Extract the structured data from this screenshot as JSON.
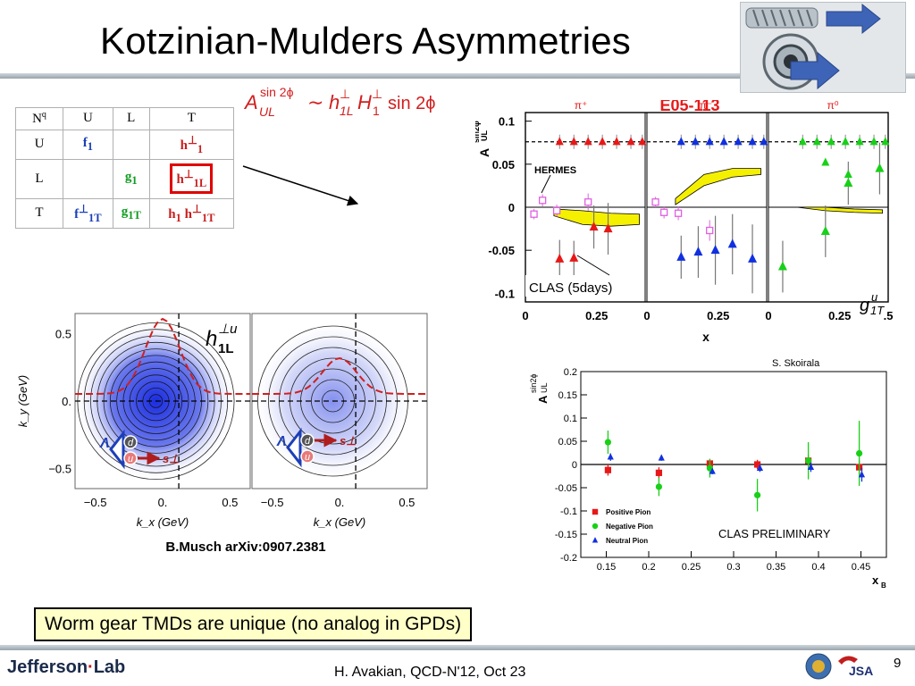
{
  "slide": {
    "title": "Kotzinian-Mulders Asymmetries",
    "page_number": "9",
    "footer": "H. Avakian, QCD-N'12,  Oct 23",
    "logo_text_left": "Jefferson",
    "logo_text_right": "Lab",
    "logo_jsa": "JSA",
    "top_logo_icon": "worm-gear-icon",
    "highlight_box": "Worm gear TMDs are unique (no analog in GPDs)",
    "citation": "B.Musch arXiv:0907.2381",
    "colors": {
      "red": "#e81818",
      "blue": "#1030e0",
      "green": "#18d018",
      "magenta": "#e060e0",
      "band": "#f5f000",
      "highlight_bg": "#ffffc8"
    }
  },
  "formula": {
    "A": "A",
    "sup": "sin 2ϕ",
    "sub": "UL",
    "sim": "∼",
    "h": "h",
    "hsup": "⊥",
    "hsub": "1L",
    "H": "H",
    "Hsup": "⊥",
    "Hsub": "1",
    "sin": "sin 2ϕ"
  },
  "tmd_table": {
    "corner_n": "N",
    "corner_q": "q",
    "cols": [
      "U",
      "L",
      "T"
    ],
    "rows": [
      {
        "label": "U",
        "cells": [
          {
            "base": "f",
            "sub": "1",
            "sup": "",
            "color": "blue"
          },
          {
            "base": "",
            "sub": "",
            "sup": "",
            "color": ""
          },
          {
            "base": "h",
            "sub": "1",
            "sup": "⊥",
            "color": "red"
          }
        ]
      },
      {
        "label": "L",
        "cells": [
          {
            "base": "",
            "sub": "",
            "sup": "",
            "color": ""
          },
          {
            "base": "g",
            "sub": "1",
            "sup": "",
            "color": "green"
          },
          {
            "base": "h",
            "sub": "1L",
            "sup": "⊥",
            "color": "red",
            "highlight": true
          }
        ]
      },
      {
        "label": "T",
        "cells": [
          {
            "base": "f",
            "sub": "1T",
            "sup": "⊥",
            "color": "blue"
          },
          {
            "base": "g",
            "sub": "1T",
            "sup": "",
            "color": "green"
          },
          {
            "base": "h",
            "sub": "1",
            "sup": "",
            "color": "red",
            "extra": {
              "base": "h",
              "sub": "1T",
              "sup": "⊥"
            }
          }
        ]
      }
    ]
  },
  "chart_data": [
    {
      "type": "scatter",
      "title": "E05-113",
      "ylabel_main": "A",
      "ylabel_sup": "sin2ϕ",
      "ylabel_sub": "UL",
      "xlabel": "x",
      "ylim": [
        -0.11,
        0.11
      ],
      "xlim": [
        0,
        0.42
      ],
      "yticks": [
        "0.1",
        "0.05",
        "0",
        "-0.05",
        "-0.1"
      ],
      "ytick_values": [
        0.1,
        0.05,
        0,
        -0.05,
        -0.1
      ],
      "xticks": [
        "0",
        "0.25",
        "0",
        "0.25",
        "0",
        "0.25",
        ".5"
      ],
      "annotation_hermes": "HERMES",
      "annotation_clas": "CLAS (5days)",
      "annotation_g": "g",
      "annotation_g_sup": "u",
      "annotation_g_sub": "1T",
      "panels": [
        {
          "label": "π⁺",
          "color": "#e81818",
          "projected": {
            "x": [
              0.12,
              0.17,
              0.22,
              0.27,
              0.32,
              0.37,
              0.41
            ],
            "y": [
              0.076,
              0.076,
              0.076,
              0.076,
              0.076,
              0.076,
              0.076
            ]
          },
          "clas": {
            "x": [
              0.12,
              0.17,
              0.24,
              0.29
            ],
            "y": [
              -0.06,
              -0.059,
              -0.023,
              -0.025
            ],
            "err": [
              0.022,
              0.02,
              0.025,
              0.03
            ]
          },
          "hermes": {
            "x": [
              0.03,
              0.06,
              0.11,
              0.22
            ],
            "y": [
              -0.008,
              0.008,
              -0.004,
              0.006
            ],
            "err": [
              0.006,
              0.007,
              0.007,
              0.01
            ]
          },
          "band": {
            "x": [
              0.1,
              0.2,
              0.3,
              0.4
            ],
            "lower": [
              -0.01,
              -0.02,
              -0.022,
              -0.02
            ],
            "upper": [
              -0.002,
              -0.004,
              -0.007,
              -0.008
            ]
          }
        },
        {
          "label": "π⁻",
          "color": "#1030e0",
          "projected": {
            "x": [
              0.12,
              0.17,
              0.22,
              0.27,
              0.32,
              0.37,
              0.41
            ],
            "y": [
              0.076,
              0.076,
              0.076,
              0.076,
              0.076,
              0.076,
              0.076
            ]
          },
          "clas": {
            "x": [
              0.12,
              0.18,
              0.24,
              0.3,
              0.37
            ],
            "y": [
              -0.058,
              -0.052,
              -0.05,
              -0.043,
              -0.06
            ],
            "err": [
              0.025,
              0.03,
              0.04,
              0.035,
              0.04
            ]
          },
          "hermes": {
            "x": [
              0.03,
              0.06,
              0.11,
              0.22
            ],
            "y": [
              0.006,
              -0.006,
              -0.007,
              -0.027
            ],
            "err": [
              0.006,
              0.007,
              0.008,
              0.012
            ]
          },
          "band": {
            "x": [
              0.1,
              0.2,
              0.3,
              0.4
            ],
            "lower": [
              0.003,
              0.025,
              0.035,
              0.038
            ],
            "upper": [
              0.01,
              0.038,
              0.045,
              0.045
            ]
          }
        },
        {
          "label": "π⁰",
          "color": "#18d018",
          "projected": {
            "x": [
              0.12,
              0.17,
              0.22,
              0.27,
              0.32,
              0.37,
              0.41
            ],
            "y": [
              0.076,
              0.076,
              0.076,
              0.076,
              0.076,
              0.076,
              0.076
            ]
          },
          "clas": {
            "x": [
              0.05,
              0.2,
              0.28,
              0.39
            ],
            "y": [
              -0.069,
              -0.028,
              0.028,
              0.045
            ],
            "err": [
              0.03,
              0.03,
              0.025,
              0.03
            ]
          },
          "extra": {
            "x": [
              0.2,
              0.28
            ],
            "y": [
              0.052,
              0.038
            ],
            "err": [
              0.01,
              0.01
            ]
          },
          "band": {
            "x": [
              0.1,
              0.2,
              0.3,
              0.4
            ],
            "lower": [
              0.0,
              -0.004,
              -0.006,
              -0.007
            ],
            "upper": [
              0.0,
              0.0,
              -0.002,
              -0.003
            ]
          }
        }
      ]
    },
    {
      "type": "heatmap",
      "xlabel": "k_x (GeV)",
      "ylabel": "k_y (GeV)",
      "xlim": [
        -0.65,
        0.65
      ],
      "ylim": [
        -0.65,
        0.65
      ],
      "xticks": [
        "−0.5",
        "0.",
        "0.5"
      ],
      "xtick_values": [
        -0.5,
        0,
        0.5
      ],
      "yticks": [
        "0.5",
        "0.",
        "−0.5"
      ],
      "ytick_values": [
        0.5,
        0,
        -0.5
      ],
      "annotation": "h",
      "annotation_sup": "⊥u",
      "annotation_sub": "1L",
      "panels": [
        {
          "intensity": 1.0,
          "lambda": "Λ",
          "quark_top": "d",
          "quark_bottom": "u",
          "spin": "s⊥",
          "spin_at": "bottom"
        },
        {
          "intensity": 0.55,
          "lambda": "Λ",
          "quark_top": "d",
          "quark_bottom": "u",
          "spin": "s⊥",
          "spin_at": "top"
        }
      ]
    },
    {
      "type": "scatter",
      "credit": "S. Skoirala",
      "ylabel_main": "A",
      "ylabel_sup": "sin2ϕ",
      "ylabel_sub": "UL",
      "xlabel": "x",
      "xlabel_sub": "B",
      "xlim": [
        0.12,
        0.48
      ],
      "ylim": [
        -0.2,
        0.2
      ],
      "yticks": [
        "0.2",
        "0.15",
        "0.1",
        "0.05",
        "0",
        "-0.05",
        "-0.1",
        "-0.15",
        "-0.2"
      ],
      "ytick_values": [
        0.2,
        0.15,
        0.1,
        0.05,
        0,
        -0.05,
        -0.1,
        -0.15,
        -0.2
      ],
      "xticks": [
        "0.15",
        "0.2",
        "0.25",
        "0.3",
        "0.35",
        "0.4",
        "0.45"
      ],
      "xtick_values": [
        0.15,
        0.2,
        0.25,
        0.3,
        0.35,
        0.4,
        0.45
      ],
      "annotation": "CLAS PRELIMINARY",
      "series": [
        {
          "name": "Positive Pion",
          "color": "#e81818",
          "marker": "square",
          "x": [
            0.152,
            0.212,
            0.272,
            0.328,
            0.388,
            0.448
          ],
          "y": [
            -0.012,
            -0.018,
            0.002,
            0.0,
            0.008,
            -0.006
          ],
          "err": [
            0.012,
            0.012,
            0.01,
            0.01,
            0.012,
            0.015
          ]
        },
        {
          "name": "Negative Pion",
          "color": "#18d018",
          "marker": "circle",
          "x": [
            0.152,
            0.212,
            0.272,
            0.328,
            0.388,
            0.448
          ],
          "y": [
            0.048,
            -0.048,
            -0.008,
            -0.066,
            0.008,
            0.024
          ],
          "err": [
            0.025,
            0.02,
            0.02,
            0.035,
            0.04,
            0.07
          ]
        },
        {
          "name": "Neutral Pion",
          "color": "#1030e0",
          "marker": "triangle",
          "x": [
            0.155,
            0.215,
            0.275,
            0.331,
            0.391,
            0.451
          ],
          "y": [
            0.016,
            0.014,
            -0.015,
            -0.008,
            -0.006,
            -0.022
          ],
          "err": [
            0.008,
            0.006,
            0.006,
            0.008,
            0.01,
            0.015
          ]
        }
      ]
    }
  ]
}
